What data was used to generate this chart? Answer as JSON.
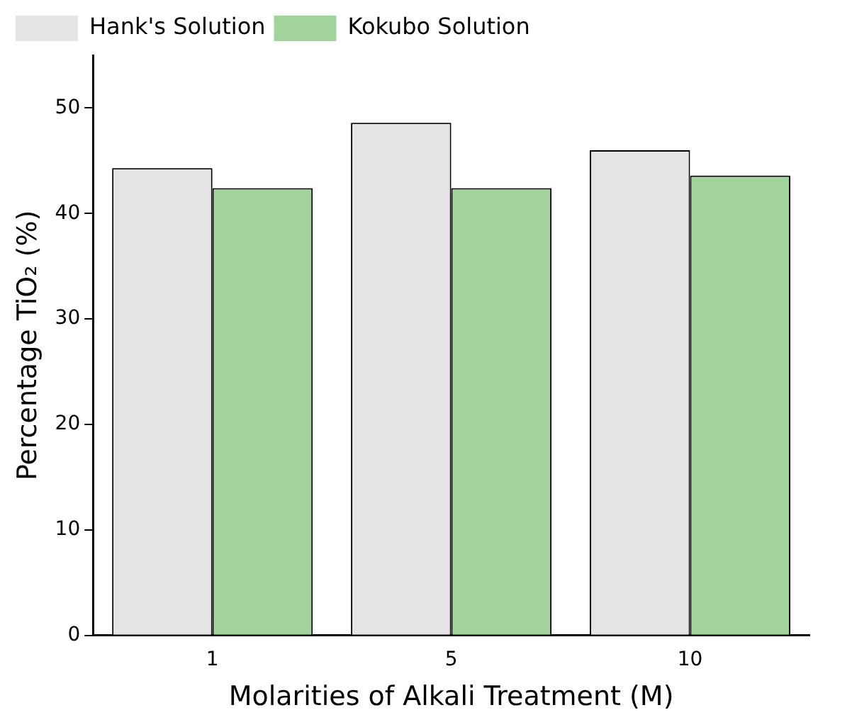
{
  "chart_data": {
    "type": "bar",
    "xlabel": "Molarities of Alkali Treatment (M)",
    "ylabel": "Percentage TiO₂ (%)",
    "categories": [
      "1",
      "5",
      "10"
    ],
    "series": [
      {
        "name": "Hank's Solution",
        "color": "#e4e4e4",
        "values": [
          44.3,
          48.6,
          46.0
        ]
      },
      {
        "name": "Kokubo Solution",
        "color": "#a3d39c",
        "values": [
          42.4,
          42.4,
          43.6
        ]
      }
    ],
    "ylim": [
      0,
      55
    ],
    "yticks": [
      0,
      10,
      20,
      30,
      40,
      50
    ],
    "grid": false,
    "legend": "top left"
  }
}
